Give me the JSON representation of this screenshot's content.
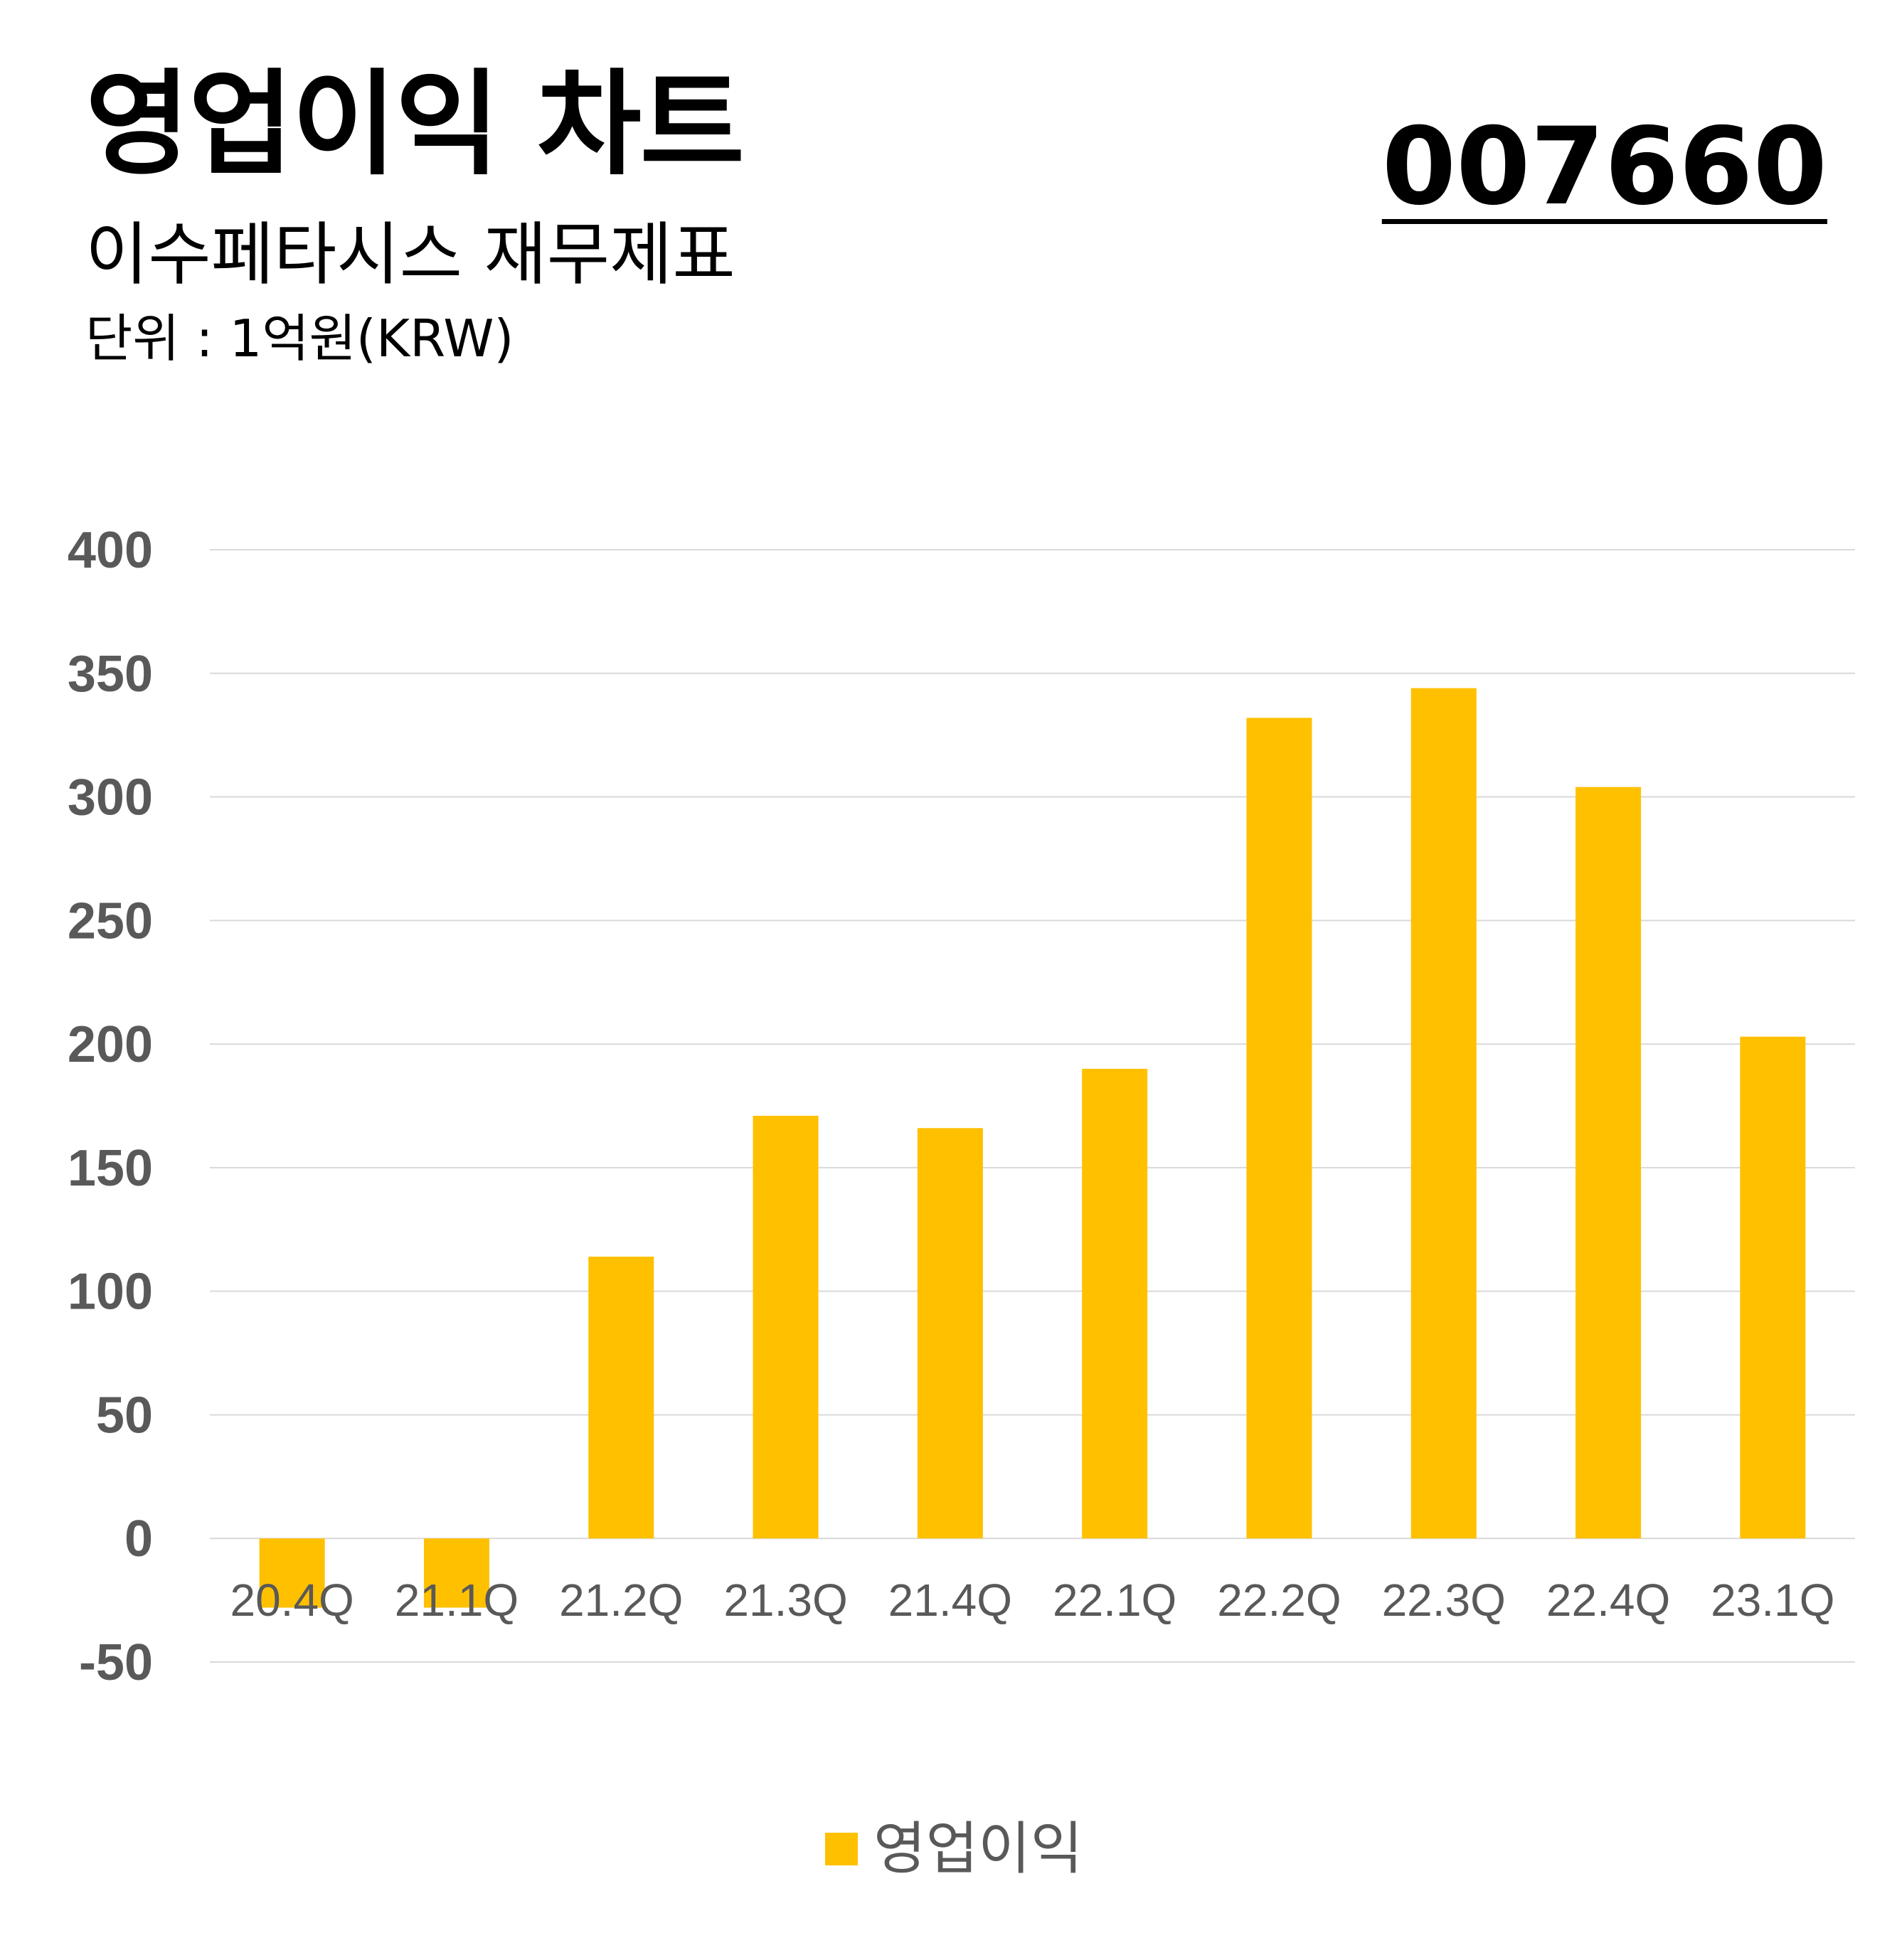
{
  "header": {
    "title": "영업이익 차트",
    "subtitle": "이수페타시스 재무제표",
    "unit": "단위 : 1억원(KRW)",
    "ticker": "007660"
  },
  "legend": {
    "label": "영업이익",
    "color": "#FFC000"
  },
  "chart_data": {
    "type": "bar",
    "categories": [
      "20.4Q",
      "21.1Q",
      "21.2Q",
      "21.3Q",
      "21.4Q",
      "22.1Q",
      "22.2Q",
      "22.3Q",
      "22.4Q",
      "23.1Q"
    ],
    "series": [
      {
        "name": "영업이익",
        "values": [
          -28,
          -28,
          114,
          171,
          166,
          190,
          332,
          344,
          304,
          203
        ],
        "color": "#FFC000"
      }
    ],
    "yticks": [
      -50,
      0,
      50,
      100,
      150,
      200,
      250,
      300,
      350,
      400
    ],
    "ylim": [
      -50,
      400
    ],
    "grid": true,
    "legend_position": "bottom"
  }
}
